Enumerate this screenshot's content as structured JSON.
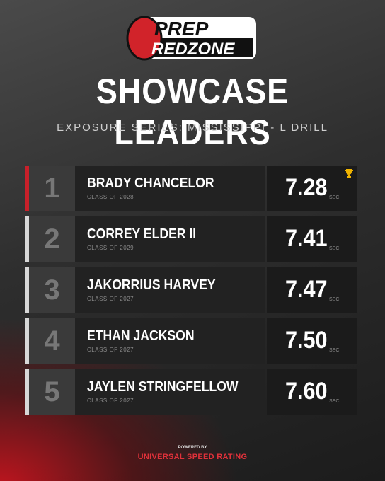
{
  "logo": {
    "top": "PREP",
    "bottom": "REDZONE"
  },
  "header": {
    "title": "SHOWCASE LEADERS",
    "subtitle": "EXPOSURE SERIES: MISSISSIPPI - L DRILL"
  },
  "leaders": [
    {
      "rank": 1,
      "name": "BRADY CHANCELOR",
      "class": "CLASS OF 2028",
      "time": "7.28",
      "unit": "SEC"
    },
    {
      "rank": 2,
      "name": "CORREY ELDER II",
      "class": "CLASS OF 2029",
      "time": "7.41",
      "unit": "SEC"
    },
    {
      "rank": 3,
      "name": "JAKORRIUS HARVEY",
      "class": "CLASS OF 2027",
      "time": "7.47",
      "unit": "SEC"
    },
    {
      "rank": 4,
      "name": "ETHAN JACKSON",
      "class": "CLASS OF 2027",
      "time": "7.50",
      "unit": "SEC"
    },
    {
      "rank": 5,
      "name": "JAYLEN STRINGFELLOW",
      "class": "CLASS OF 2027",
      "time": "7.60",
      "unit": "SEC"
    }
  ],
  "footer": {
    "powered": "POWERED BY",
    "brand": "UNIVERSAL SPEED RATING"
  }
}
